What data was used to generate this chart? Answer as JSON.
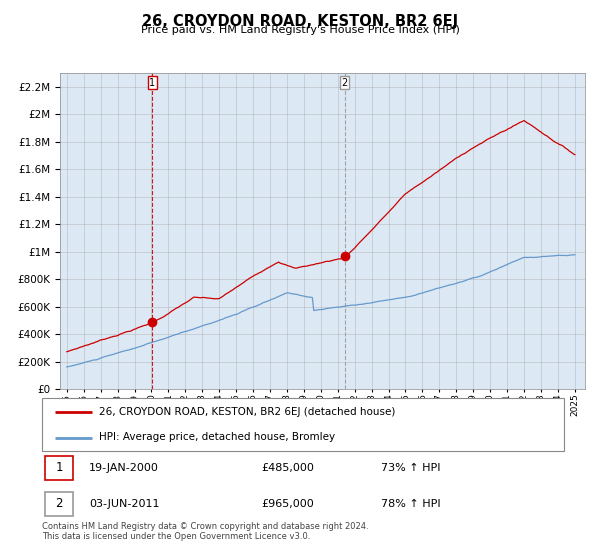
{
  "title": "26, CROYDON ROAD, KESTON, BR2 6EJ",
  "subtitle": "Price paid vs. HM Land Registry's House Price Index (HPI)",
  "sale1_price": 485000,
  "sale1_label": "19-JAN-2000",
  "sale1_pct": "73% ↑ HPI",
  "sale2_price": 965000,
  "sale2_label": "03-JUN-2011",
  "sale2_pct": "78% ↑ HPI",
  "legend_line1": "26, CROYDON ROAD, KESTON, BR2 6EJ (detached house)",
  "legend_line2": "HPI: Average price, detached house, Bromley",
  "footer": "Contains HM Land Registry data © Crown copyright and database right 2024.\nThis data is licensed under the Open Government Licence v3.0.",
  "red_color": "#cc0000",
  "blue_color": "#6699cc",
  "bg_color": "#dce9f5",
  "grid_color": "#aaaaaa",
  "ylim_max": 2300000,
  "sale1_x": 2000.05,
  "sale2_x": 2011.42
}
